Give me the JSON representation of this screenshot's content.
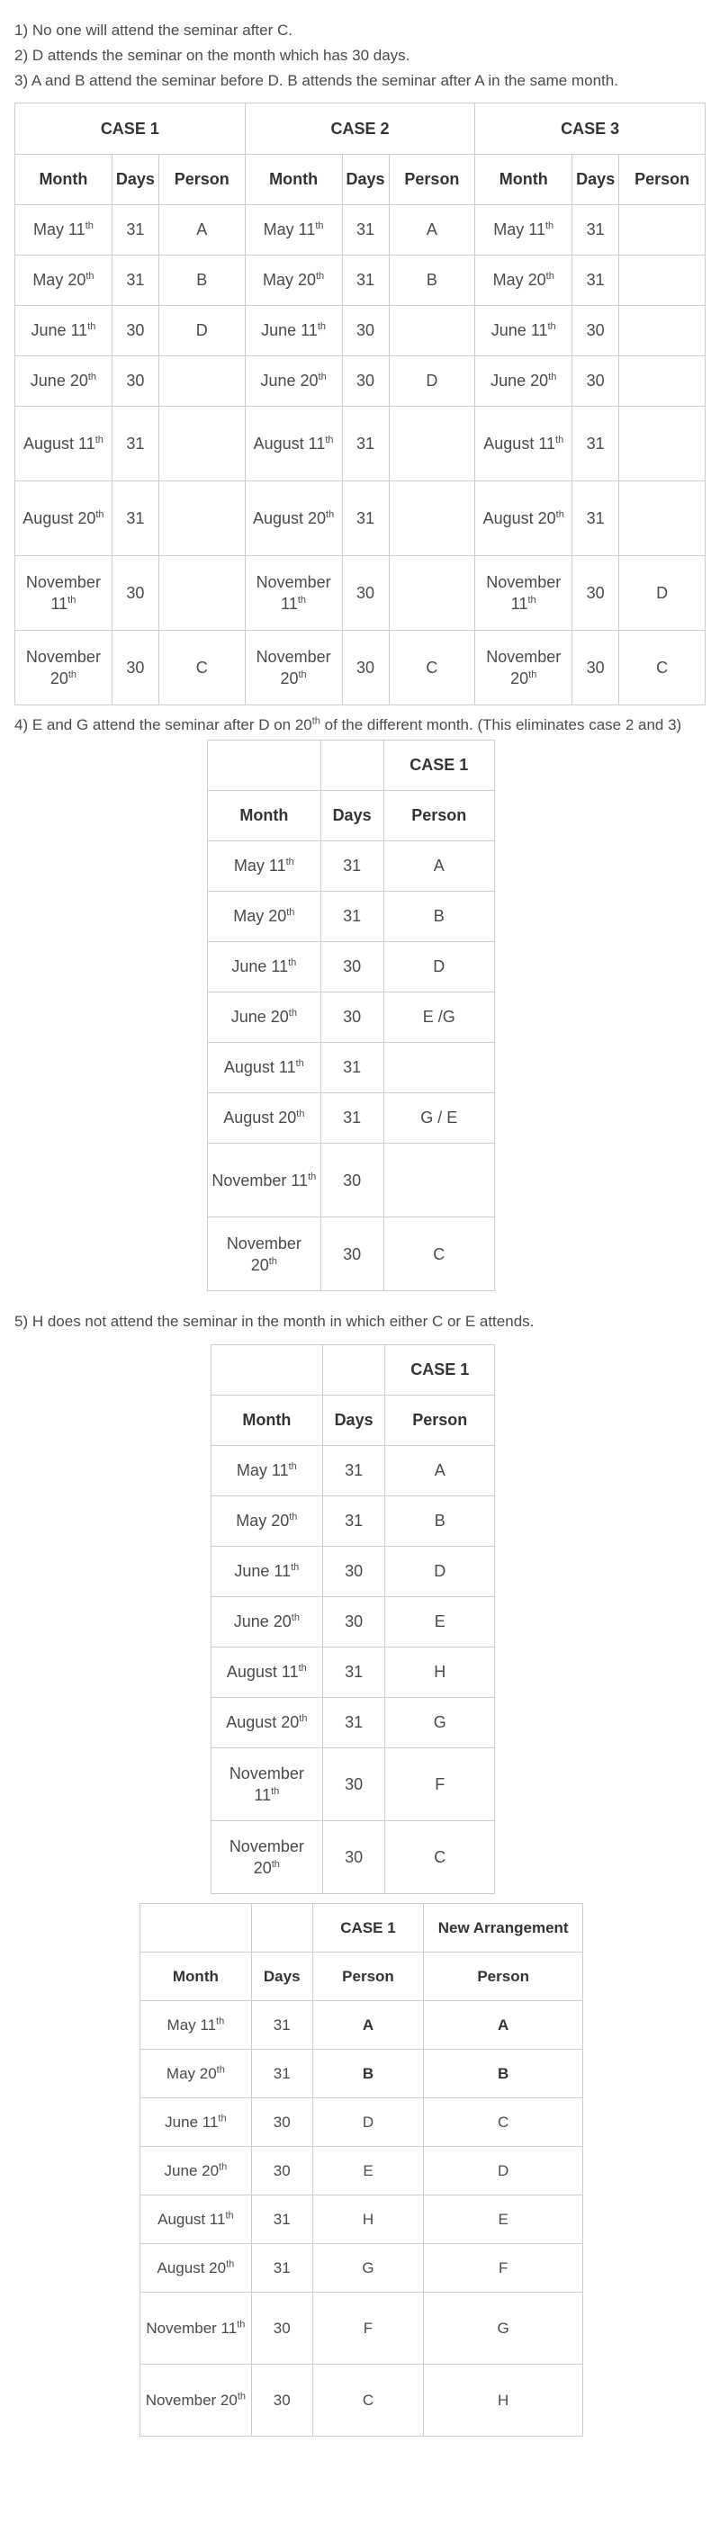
{
  "statements": [
    "1) No one will attend the seminar after C.",
    "2) D attends the seminar on the month which has 30 days.",
    "3) A and B attend the seminar before D. B attends the seminar after A in the same month.",
    "4) E and G attend the seminar after D on 20",
    "5) H does not attend the seminar in the month in which either C or E attends."
  ],
  "statement4": {
    "prefix": "4) E and G attend the seminar after D on 20",
    "sup": "th",
    "suffix": " of the different month. (This eliminates case 2 and 3)"
  },
  "headers": {
    "month": "Month",
    "days": "Days",
    "person": "Person",
    "case1": "CASE 1",
    "case2": "CASE 2",
    "case3": "CASE 3",
    "new_arrangement": "New Arrangement"
  },
  "months": [
    {
      "name": "May 11",
      "sup": "th",
      "days": "31"
    },
    {
      "name": "May 20",
      "sup": "th",
      "days": "31"
    },
    {
      "name": "June 11",
      "sup": "th",
      "days": "30"
    },
    {
      "name": "June 20",
      "sup": "th",
      "days": "30"
    },
    {
      "name": "August 11",
      "sup": "th",
      "days": "31"
    },
    {
      "name": "August 20",
      "sup": "th",
      "days": "31"
    },
    {
      "name": "November 11",
      "sup": "th",
      "days": "30"
    },
    {
      "name": "November 20",
      "sup": "th",
      "days": "30"
    }
  ],
  "table1": {
    "case1": [
      "A",
      "B",
      "D",
      "",
      "",
      "",
      "",
      "C"
    ],
    "case2": [
      "A",
      "B",
      "",
      "D",
      "",
      "",
      "",
      "C"
    ],
    "case3": [
      "",
      "",
      "",
      "",
      "",
      "",
      "D",
      "C"
    ]
  },
  "table2": {
    "case1": [
      "A",
      "B",
      "D",
      "E /G",
      "",
      "G / E",
      "",
      "C"
    ]
  },
  "table3": {
    "case1": [
      "A",
      "B",
      "D",
      "E",
      "H",
      "G",
      "F",
      "C"
    ]
  },
  "table4": {
    "case1": [
      "A",
      "B",
      "D",
      "E",
      "H",
      "G",
      "F",
      "C"
    ],
    "new_arrangement": [
      "A",
      "B",
      "C",
      "D",
      "E",
      "F",
      "G",
      "H"
    ]
  }
}
